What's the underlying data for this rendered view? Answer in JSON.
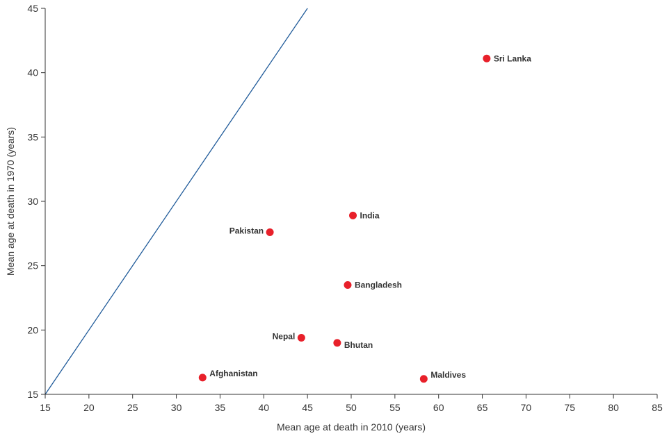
{
  "chart_data": {
    "type": "scatter",
    "xlabel": "Mean age at death in 2010 (years)",
    "ylabel": "Mean age at death in 1970 (years)",
    "xlim": [
      15,
      85
    ],
    "ylim": [
      15,
      45
    ],
    "xticks": [
      15,
      20,
      25,
      30,
      35,
      40,
      45,
      50,
      55,
      60,
      65,
      70,
      75,
      80,
      85
    ],
    "yticks": [
      15,
      20,
      25,
      30,
      35,
      40,
      45
    ],
    "grid": false,
    "reference_line": {
      "x": [
        15,
        45
      ],
      "y": [
        15,
        45
      ],
      "color": "#1f5a99"
    },
    "marker_color": "#e8202a",
    "points": [
      {
        "label": "Sri Lanka",
        "x": 65.5,
        "y": 41.1,
        "label_side": "right"
      },
      {
        "label": "India",
        "x": 50.2,
        "y": 28.9,
        "label_side": "right"
      },
      {
        "label": "Pakistan",
        "x": 40.7,
        "y": 27.6,
        "label_side": "left"
      },
      {
        "label": "Bangladesh",
        "x": 49.6,
        "y": 23.5,
        "label_side": "right"
      },
      {
        "label": "Nepal",
        "x": 44.3,
        "y": 19.4,
        "label_side": "left"
      },
      {
        "label": "Bhutan",
        "x": 48.4,
        "y": 19.0,
        "label_side": "right-below"
      },
      {
        "label": "Afghanistan",
        "x": 33.0,
        "y": 16.3,
        "label_side": "right-above"
      },
      {
        "label": "Maldives",
        "x": 58.3,
        "y": 16.2,
        "label_side": "right-above"
      }
    ]
  }
}
